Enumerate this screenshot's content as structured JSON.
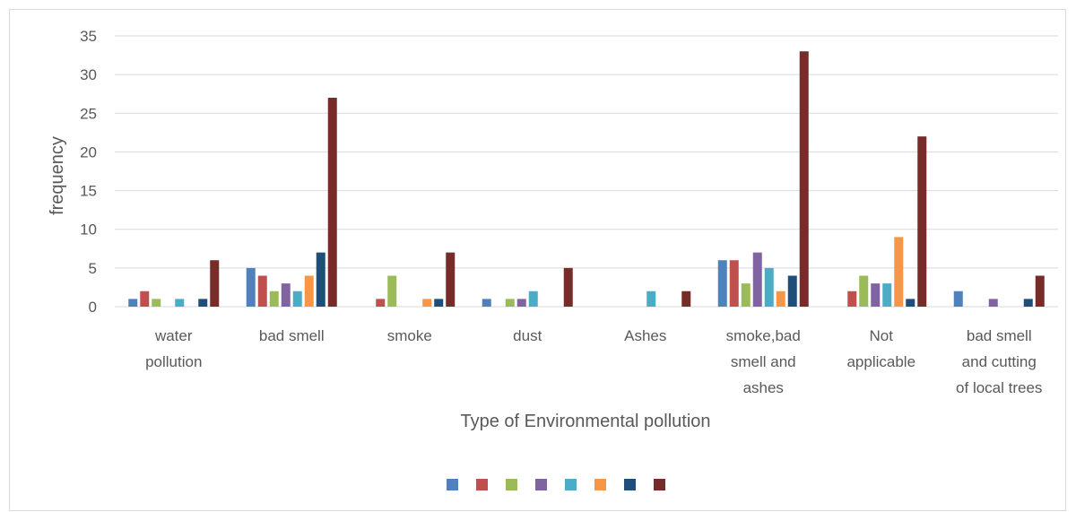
{
  "chart_data": {
    "type": "bar",
    "xlabel": "Type of Environmental pollution",
    "ylabel": "frequency",
    "ylim": [
      0,
      35
    ],
    "yticks": [
      0,
      5,
      10,
      15,
      20,
      25,
      30,
      35
    ],
    "grid": true,
    "legend_position": "bottom",
    "categories": [
      [
        "water",
        "pollution"
      ],
      [
        "bad smell"
      ],
      [
        "smoke"
      ],
      [
        "dust"
      ],
      [
        "Ashes"
      ],
      [
        "smoke,bad",
        "smell and",
        "ashes"
      ],
      [
        "Not",
        "applicable"
      ],
      [
        "bad smell",
        "and cutting",
        "of local trees"
      ]
    ],
    "series": [
      {
        "color": "#4f81bd",
        "values": [
          1,
          5,
          0,
          1,
          0,
          6,
          0,
          2
        ]
      },
      {
        "color": "#c0504d",
        "values": [
          2,
          4,
          1,
          0,
          0,
          6,
          2,
          0
        ]
      },
      {
        "color": "#9bbb59",
        "values": [
          1,
          2,
          4,
          1,
          0,
          3,
          4,
          0
        ]
      },
      {
        "color": "#8064a2",
        "values": [
          0,
          3,
          0,
          1,
          0,
          7,
          3,
          1
        ]
      },
      {
        "color": "#4bacc6",
        "values": [
          1,
          2,
          0,
          2,
          2,
          5,
          3,
          0
        ]
      },
      {
        "color": "#f79646",
        "values": [
          0,
          4,
          1,
          0,
          0,
          2,
          9,
          0
        ]
      },
      {
        "color": "#1f4e79",
        "values": [
          1,
          7,
          1,
          0,
          0,
          4,
          1,
          1
        ]
      },
      {
        "color": "#772c2a",
        "values": [
          6,
          27,
          7,
          5,
          2,
          33,
          22,
          4
        ]
      }
    ]
  }
}
